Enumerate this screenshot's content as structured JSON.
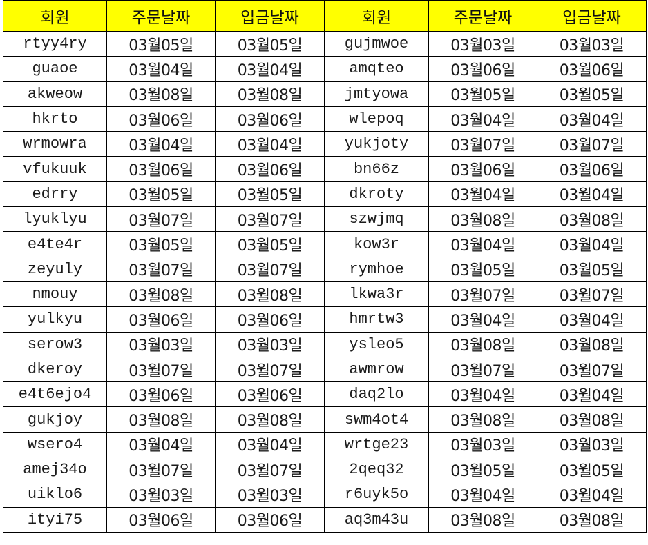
{
  "headers": [
    "회원",
    "주문날짜",
    "입금날짜",
    "회원",
    "주문날짜",
    "입금날짜"
  ],
  "rows": [
    [
      "rtyy4ry",
      "03월05일",
      "03월05일",
      "gujmwoe",
      "03월03일",
      "03월03일"
    ],
    [
      "guaoe",
      "03월04일",
      "03월04일",
      "amqteo",
      "03월06일",
      "03월06일"
    ],
    [
      "akweow",
      "03월08일",
      "03월08일",
      "jmtyowa",
      "03월05일",
      "03월05일"
    ],
    [
      "hkrto",
      "03월06일",
      "03월06일",
      "wlepoq",
      "03월04일",
      "03월04일"
    ],
    [
      "wrmowra",
      "03월04일",
      "03월04일",
      "yukjoty",
      "03월07일",
      "03월07일"
    ],
    [
      "vfukuuk",
      "03월06일",
      "03월06일",
      "bn66z",
      "03월06일",
      "03월06일"
    ],
    [
      "edrry",
      "03월05일",
      "03월05일",
      "dkroty",
      "03월04일",
      "03월04일"
    ],
    [
      "lyuklyu",
      "03월07일",
      "03월07일",
      "szwjmq",
      "03월08일",
      "03월08일"
    ],
    [
      "e4te4r",
      "03월05일",
      "03월05일",
      "kow3r",
      "03월04일",
      "03월04일"
    ],
    [
      "zeyuly",
      "03월07일",
      "03월07일",
      "rymhoe",
      "03월05일",
      "03월05일"
    ],
    [
      "nmouy",
      "03월08일",
      "03월08일",
      "lkwa3r",
      "03월07일",
      "03월07일"
    ],
    [
      "yulkyu",
      "03월06일",
      "03월06일",
      "hmrtw3",
      "03월04일",
      "03월04일"
    ],
    [
      "serow3",
      "03월03일",
      "03월03일",
      "ysleo5",
      "03월08일",
      "03월08일"
    ],
    [
      "dkeroy",
      "03월07일",
      "03월07일",
      "awmrow",
      "03월07일",
      "03월07일"
    ],
    [
      "e4t6ejo4",
      "03월06일",
      "03월06일",
      "daq2lo",
      "03월04일",
      "03월04일"
    ],
    [
      "gukjoy",
      "03월08일",
      "03월08일",
      "swm4ot4",
      "03월08일",
      "03월08일"
    ],
    [
      "wsero4",
      "03월04일",
      "03월04일",
      "wrtge23",
      "03월03일",
      "03월03일"
    ],
    [
      "amej34o",
      "03월07일",
      "03월07일",
      "2qeq32",
      "03월05일",
      "03월05일"
    ],
    [
      "uiklo6",
      "03월03일",
      "03월03일",
      "r6uyk5o",
      "03월04일",
      "03월04일"
    ],
    [
      "ityi75",
      "03월06일",
      "03월06일",
      "aq3m43u",
      "03월08일",
      "03월08일"
    ]
  ],
  "colors": {
    "header_bg": "#ffff00",
    "grid": "#000000"
  }
}
